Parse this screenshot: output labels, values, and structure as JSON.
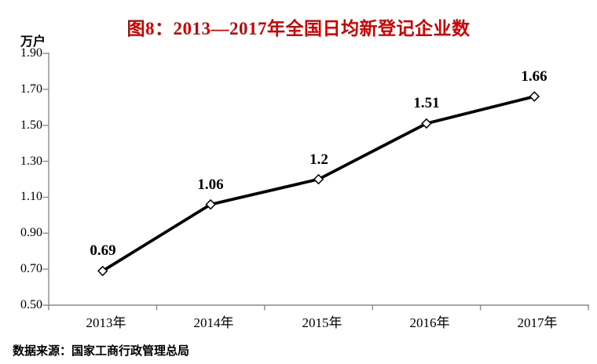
{
  "figure": {
    "title": "图8：2013—2017年全国日均新登记企业数",
    "unit_label": "万户",
    "source_note": "数据来源：国家工商行政管理总局"
  },
  "colors": {
    "title": "#d40000",
    "text": "#000000",
    "axis": "#8c8c8c",
    "line": "#000000",
    "marker_fill": "#ffffff",
    "marker_stroke": "#000000"
  },
  "chart_data": {
    "type": "line",
    "title": "图8：2013—2017年全国日均新登记企业数",
    "categories": [
      "2013年",
      "2014年",
      "2015年",
      "2016年",
      "2017年"
    ],
    "values": [
      0.69,
      1.06,
      1.2,
      1.51,
      1.66
    ],
    "point_labels": [
      "0.69",
      "1.06",
      "1.2",
      "1.51",
      "1.66"
    ],
    "xlabel": "",
    "ylabel": "万户",
    "ylim": [
      0.5,
      1.9
    ],
    "ytick_step": 0.2,
    "ytick_labels": [
      "1.90",
      "1.70",
      "1.50",
      "1.30",
      "1.10",
      "0.90",
      "0.70",
      "0.50"
    ],
    "grid": false,
    "legend": "none",
    "marker": "open-diamond"
  }
}
